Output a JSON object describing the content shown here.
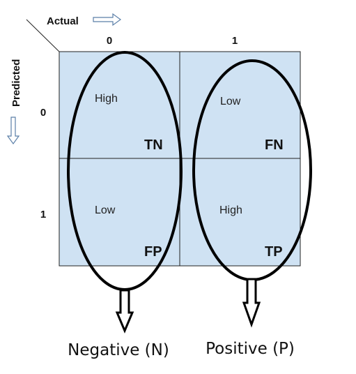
{
  "axes": {
    "actual_label": "Actual",
    "predicted_label": "Predicted",
    "actual_ticks": [
      "0",
      "1"
    ],
    "predicted_ticks": [
      "0",
      "1"
    ]
  },
  "cells": [
    {
      "level": "High",
      "code": "TN"
    },
    {
      "level": "Low",
      "code": "FN"
    },
    {
      "level": "Low",
      "code": "FP"
    },
    {
      "level": "High",
      "code": "TP"
    }
  ],
  "groups": {
    "negative": "Negative (N)",
    "positive": "Positive (P)"
  },
  "colors": {
    "cell_fill": "#cfe2f3",
    "grid_line": "#222222",
    "outline": "#000000"
  }
}
